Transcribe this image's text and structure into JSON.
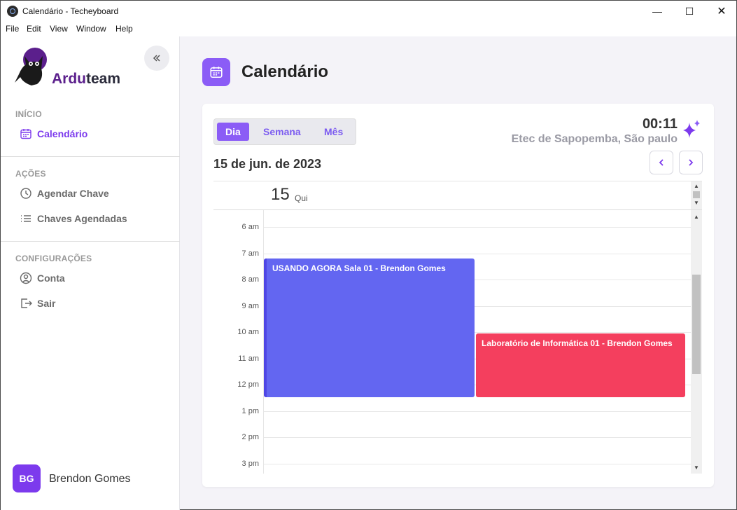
{
  "window": {
    "title": "Calendário - Techeyboard"
  },
  "menu": [
    "File",
    "Edit",
    "View",
    "Window",
    "Help"
  ],
  "brand": {
    "part1": "Ardu",
    "part2": "team"
  },
  "sidebar": {
    "section_inicio": "INÍCIO",
    "calendar": "Calendário",
    "section_acoes": "AÇÕES",
    "schedule_key": "Agendar Chave",
    "scheduled_keys": "Chaves Agendadas",
    "section_config": "CONFIGURAÇÕES",
    "account": "Conta",
    "logout": "Sair"
  },
  "user": {
    "initials": "BG",
    "name": "Brendon Gomes"
  },
  "page": {
    "title": "Calendário"
  },
  "calendar": {
    "tabs": [
      "Dia",
      "Semana",
      "Mês"
    ],
    "clock": "00:11",
    "location": "Etec de Sapopemba, São paulo",
    "date_label": "15 de jun. de 2023",
    "day_number": "15",
    "day_name": "Qui",
    "hours": [
      "6 am",
      "7 am",
      "8 am",
      "9 am",
      "10 am",
      "11 am",
      "12 pm",
      "1 pm",
      "2 pm",
      "3 pm"
    ],
    "events": [
      {
        "title": "USANDO AGORA Sala 01 - Brendon Gomes",
        "color": "#6366f1"
      },
      {
        "title": "Laboratório de Informática 01 - Brendon Gomes",
        "color": "#f43f5e"
      }
    ]
  },
  "colors": {
    "accent": "#7c3aed",
    "brand_purple": "#5b1f8c",
    "main_bg": "#f4f3f8"
  }
}
